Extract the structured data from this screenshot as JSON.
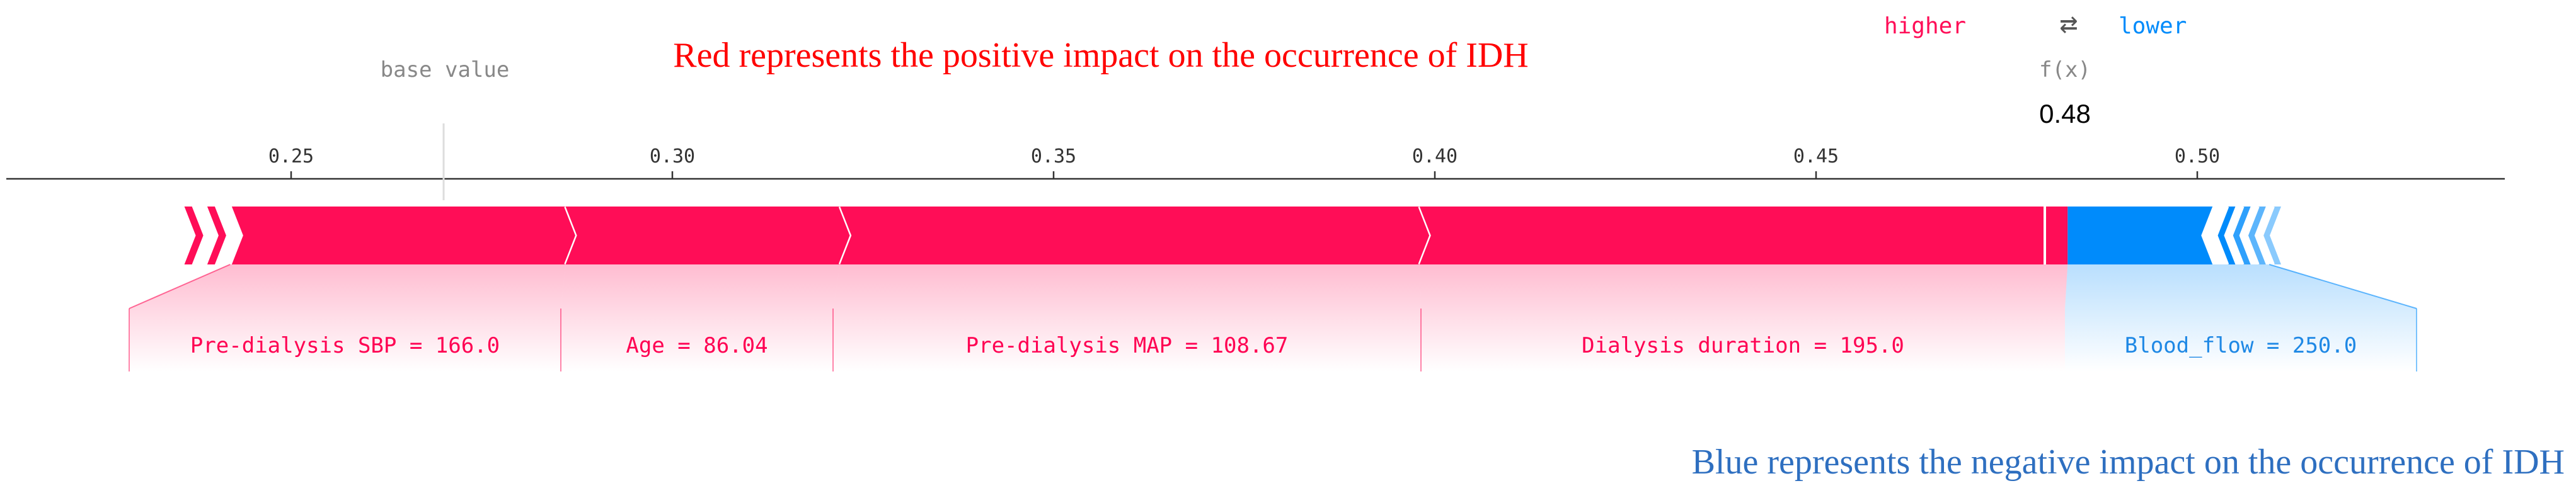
{
  "legend": {
    "higher": "higher",
    "arrow": "⇄",
    "lower": "lower"
  },
  "base_value_label": "base value",
  "fx_label": "f(x)",
  "fx_value": "0.48",
  "annotations": {
    "positive": "Red represents the positive impact on the occurrence of IDH",
    "negative": "Blue represents the negative impact on the occurrence of IDH"
  },
  "colors": {
    "positive": "#ff0d57",
    "negative": "#008bfb",
    "positive_text": "#ff0052",
    "negative_text": "#1e88e5",
    "annotation_red": "#ff0000",
    "annotation_blue": "#2e6fc0"
  },
  "chart_data": {
    "type": "force",
    "base_value": 0.27,
    "output_value": 0.48,
    "xlim": [
      0.213,
      0.54
    ],
    "ticks": [
      0.25,
      0.3,
      0.35,
      0.4,
      0.45,
      0.5
    ],
    "tick_labels": [
      "0.25",
      "0.30",
      "0.35",
      "0.40",
      "0.45",
      "0.50"
    ],
    "positive_features": [
      {
        "label": "Pre-dialysis SBP = 166.0",
        "start": 0.242,
        "end": 0.286
      },
      {
        "label": "Age = 86.04",
        "start": 0.286,
        "end": 0.322
      },
      {
        "label": "Pre-dialysis MAP = 108.67",
        "start": 0.322,
        "end": 0.398
      },
      {
        "label": "Dialysis duration = 195.0",
        "start": 0.398,
        "end": 0.483
      }
    ],
    "minor_positive": [
      0.236,
      0.239
    ],
    "negative_features": [
      {
        "label": "Blood_flow = 250.0",
        "start": 0.483,
        "end": 0.502
      }
    ],
    "minor_negative": [
      0.504,
      0.506,
      0.508,
      0.51
    ]
  }
}
